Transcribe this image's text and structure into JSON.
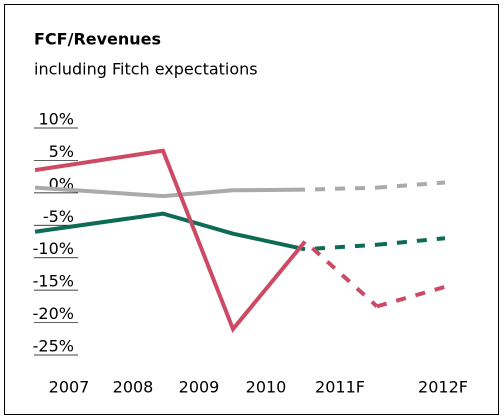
{
  "chart_data": {
    "type": "line",
    "title": "FCF/Revenues",
    "subtitle": "including Fitch expectations",
    "categories": [
      "2007",
      "2008",
      "2009",
      "2010",
      "2011F",
      "2012F"
    ],
    "series": [
      {
        "color": "#aaaaaa",
        "values": [
          0.8,
          -0.5,
          0.4,
          0.5,
          0.8,
          1.6
        ],
        "dash_from": 3
      },
      {
        "color": "#0e6b55",
        "values": [
          -6,
          -3.2,
          -6.3,
          -8.7,
          -8,
          -7
        ],
        "dash_from": 3
      },
      {
        "color": "#cc4a63",
        "values": [
          3.5,
          6.5,
          -21,
          -7.5,
          -17.5,
          -14.5
        ],
        "dash_from": 3
      }
    ],
    "ylim": [
      -25,
      10
    ],
    "yticks": [
      {
        "value": 10,
        "label": "10%"
      },
      {
        "value": 5,
        "label": "5%"
      },
      {
        "value": 0,
        "label": "0%"
      },
      {
        "value": -5,
        "label": "-5%"
      },
      {
        "value": -10,
        "label": "-10%"
      },
      {
        "value": -15,
        "label": "-15%"
      },
      {
        "value": -20,
        "label": "-20%"
      },
      {
        "value": -25,
        "label": "-25%"
      }
    ]
  }
}
